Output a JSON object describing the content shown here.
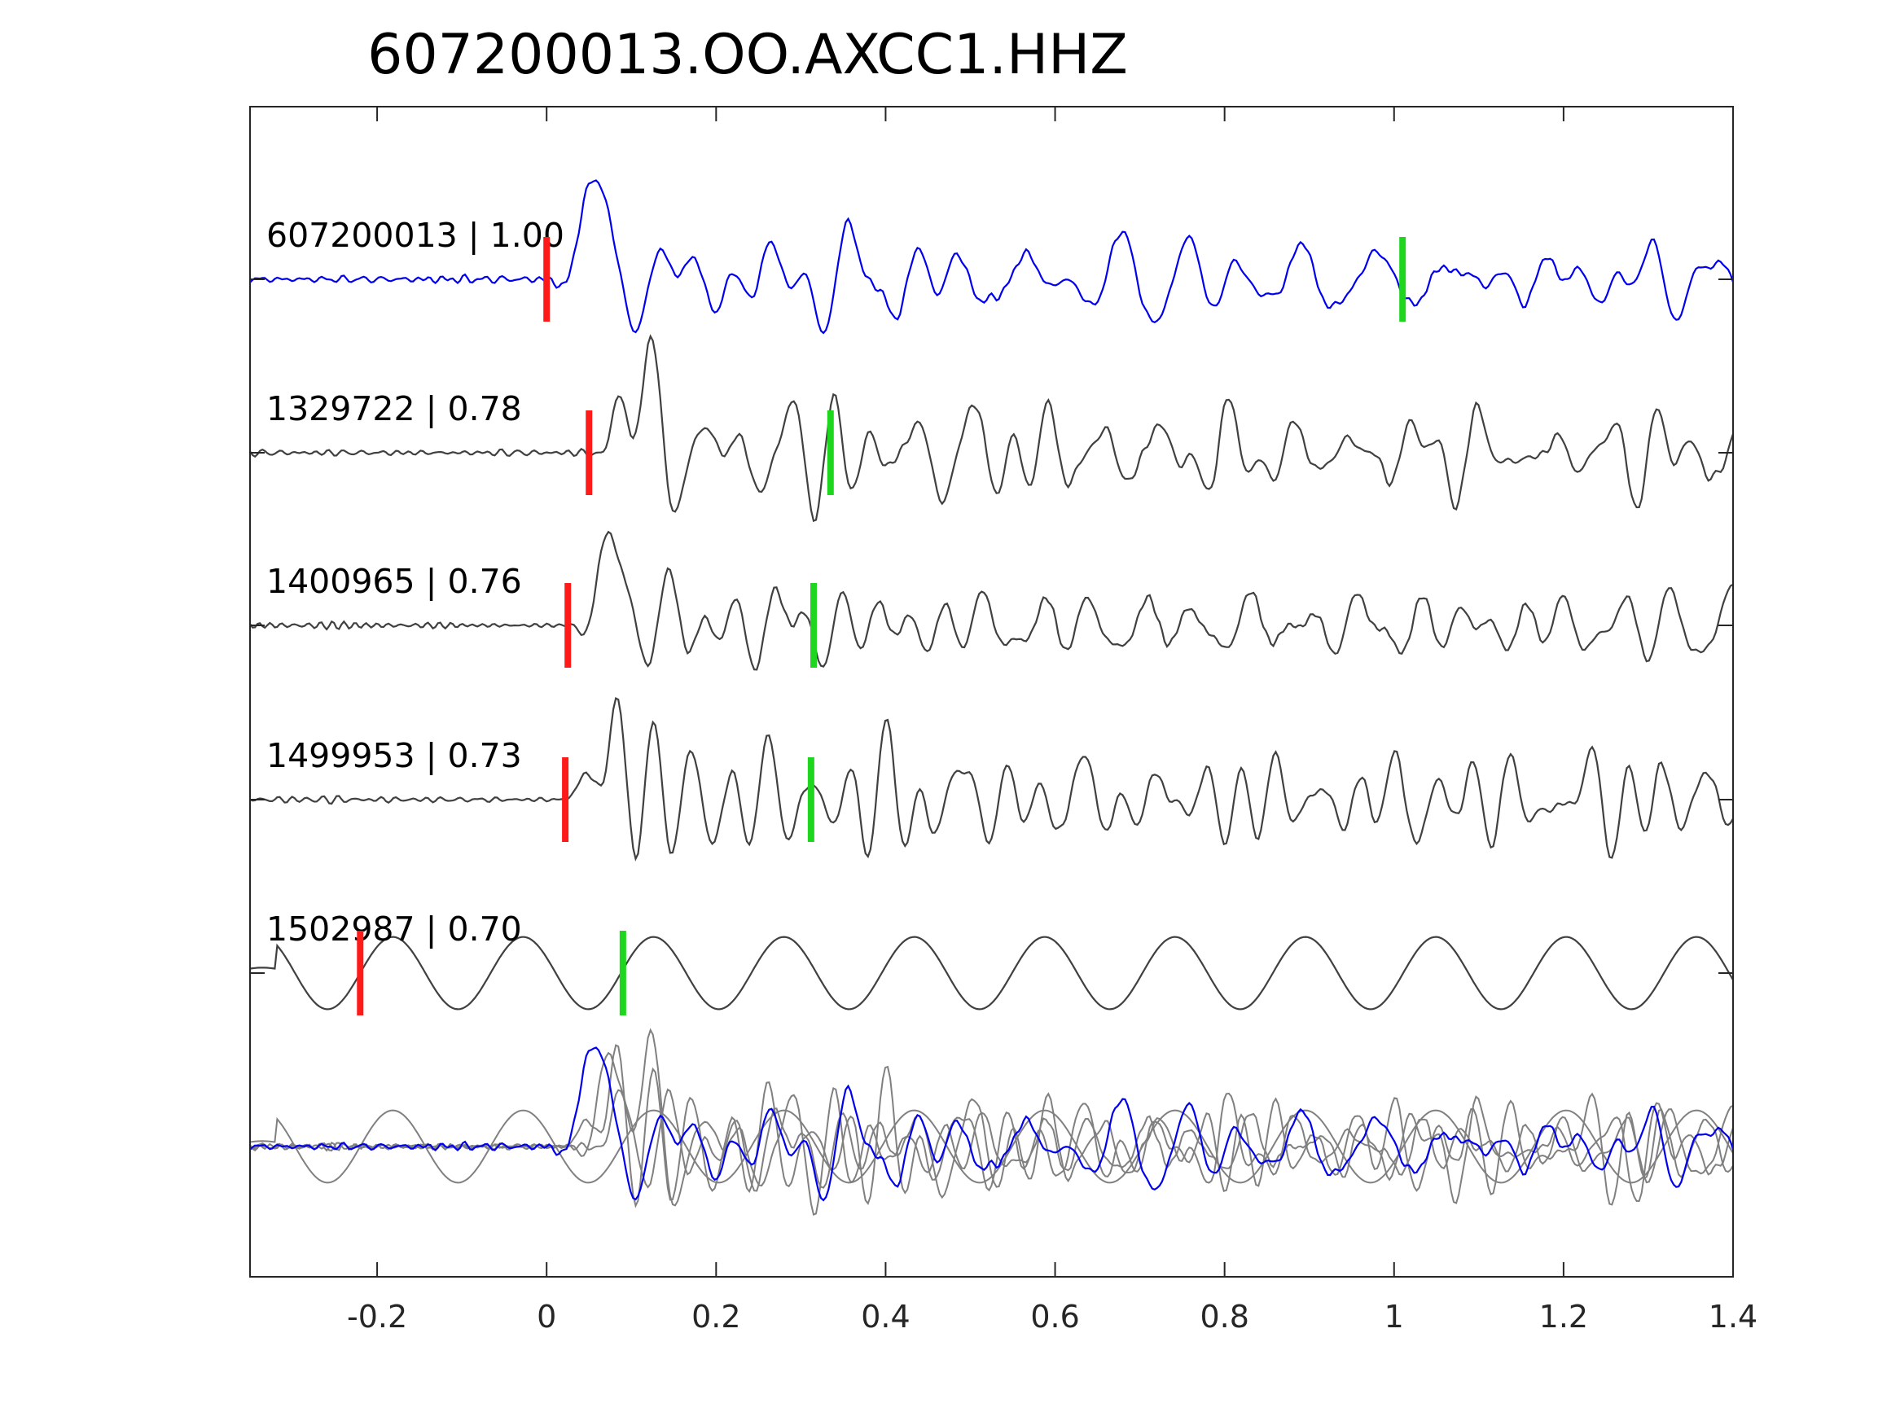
{
  "chart_data": {
    "type": "line",
    "title": "607200013.OO.AXCC1.HHZ",
    "xlabel": "",
    "ylabel": "",
    "xlim": [
      -0.35,
      1.4
    ],
    "xticks": [
      -0.2,
      0,
      0.2,
      0.4,
      0.6,
      0.8,
      1,
      1.2,
      1.4
    ],
    "xtick_labels": [
      "-0.2",
      "0",
      "0.2",
      "0.4",
      "0.6",
      "0.8",
      "1",
      "1.2",
      "1.4"
    ],
    "grid": false,
    "legend": "none",
    "colors": {
      "master": "#0000ee",
      "trace": "#404040",
      "stack": "#808080",
      "p_pick": "#ff1a1a",
      "s_pick": "#1fd61f",
      "axis": "#262626"
    },
    "traces": [
      {
        "label": "607200013 | 1.00",
        "id": "607200013",
        "correlation": 1.0,
        "color": "#0000ee",
        "p_pick": 0.0,
        "s_pick": 1.01,
        "shift": 0.0,
        "seed": 11,
        "amp": 1.0
      },
      {
        "label": "1329722 | 0.78",
        "id": "1329722",
        "correlation": 0.78,
        "color": "#404040",
        "p_pick": 0.05,
        "s_pick": 0.335,
        "shift": 0.0,
        "seed": 23,
        "amp": 1.0
      },
      {
        "label": "1400965 | 0.76",
        "id": "1400965",
        "correlation": 0.76,
        "color": "#404040",
        "p_pick": 0.025,
        "s_pick": 0.315,
        "shift": 0.0,
        "seed": 37,
        "amp": 0.95
      },
      {
        "label": "1499953 | 0.73",
        "id": "1499953",
        "correlation": 0.73,
        "color": "#404040",
        "p_pick": 0.022,
        "s_pick": 0.312,
        "shift": 0.0,
        "seed": 41,
        "amp": 0.9
      },
      {
        "label": "1502987 | 0.70",
        "id": "1502987",
        "correlation": 0.7,
        "color": "#404040",
        "p_pick": -0.22,
        "s_pick": 0.09,
        "shift": -0.23,
        "seed": 53,
        "amp": 0.85,
        "smooth": true
      }
    ],
    "stack": {
      "description_visible": false,
      "trace_ids": [
        "607200013",
        "1329722",
        "1400965",
        "1499953",
        "1502987"
      ]
    }
  }
}
